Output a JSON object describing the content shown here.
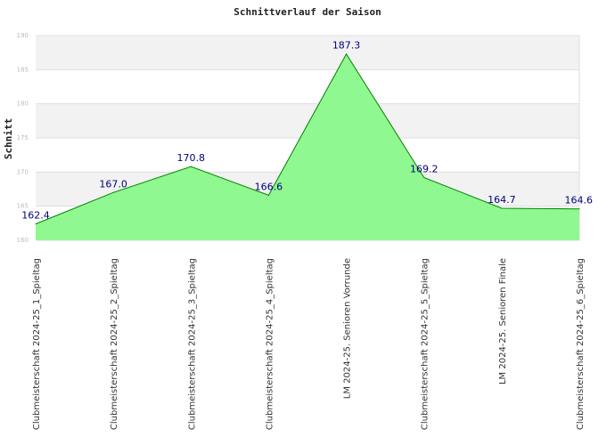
{
  "chart_data": {
    "type": "area",
    "title": "Schnittverlauf der Saison",
    "ylabel": "Schnitt",
    "xlabel": "",
    "ylim": [
      160,
      190
    ],
    "yticks": [
      160,
      165,
      170,
      175,
      180,
      185,
      190
    ],
    "grid": true,
    "legend": "none",
    "categories": [
      "Clubmeisterschaft 2024-25_1_Spieltag",
      "Clubmeisterschaft 2024-25_2_Spieltag",
      "Clubmeisterschaft 2024-25_3_Spieltag",
      "Clubmeisterschaft 2024-25_4_Spieltag",
      "LM 2024-25. Senioren Vorrunde",
      "Clubmeisterschaft 2024-25_5_Spieltag",
      "LM 2024-25. Senioren Finale",
      "Clubmeisterschaft 2024-25_6_Spieltag"
    ],
    "values": [
      162.4,
      167.0,
      170.8,
      166.6,
      187.3,
      169.2,
      164.7,
      164.6
    ],
    "value_labels": [
      "162.4",
      "167.0",
      "170.8",
      "166.6",
      "187.3",
      "169.2",
      "164.7",
      "164.6"
    ],
    "colors": {
      "fill": "#90f890",
      "line": "#008000",
      "band": "#f2f2f2",
      "grid": "#dddddd",
      "data_label": "#000080"
    }
  }
}
